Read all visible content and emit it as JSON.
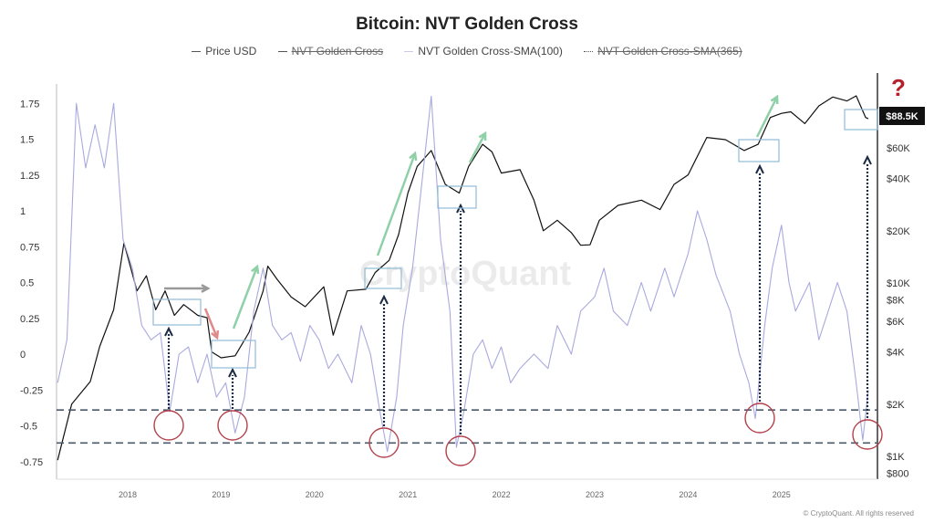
{
  "chart_data": {
    "type": "line",
    "title": "Bitcoin: NVT Golden Cross",
    "legend": [
      {
        "label": "Price USD",
        "hidden": false
      },
      {
        "label": "NVT Golden Cross",
        "hidden": true
      },
      {
        "label": "NVT Golden Cross-SMA(100)",
        "hidden": false
      },
      {
        "label": "NVT Golden Cross-SMA(365)",
        "hidden": true
      }
    ],
    "legend_position": "top",
    "x_ticks": [
      "2018",
      "2019",
      "2020",
      "2021",
      "2022",
      "2023",
      "2024",
      "2025"
    ],
    "x_range": [
      2017.24,
      2026.0
    ],
    "left_axis": {
      "ticks": [
        "1.75",
        "1.5",
        "1.25",
        "1",
        "0.75",
        "0.5",
        "0.25",
        "0",
        "-0.25",
        "-0.5",
        "-0.75"
      ],
      "range": [
        -0.8,
        1.85
      ]
    },
    "right_axis": {
      "scale": "log",
      "ticks": [
        "$60K",
        "$40K",
        "$20K",
        "$10K",
        "$8K",
        "$6K",
        "$4K",
        "$2K",
        "$1K",
        "$800"
      ],
      "range": [
        750,
        130000
      ]
    },
    "current_price_label": "$88.5K",
    "question_mark": "?",
    "threshold_lines": [
      -0.39,
      -0.62
    ],
    "series": [
      {
        "name": "Price USD",
        "axis": "right",
        "color": "#111111",
        "x": [
          2017.25,
          2017.4,
          2017.6,
          2017.7,
          2017.85,
          2017.96,
          2018.1,
          2018.2,
          2018.3,
          2018.4,
          2018.5,
          2018.6,
          2018.75,
          2018.85,
          2018.9,
          2019.0,
          2019.15,
          2019.3,
          2019.45,
          2019.5,
          2019.6,
          2019.75,
          2019.9,
          2020.1,
          2020.2,
          2020.35,
          2020.55,
          2020.65,
          2020.8,
          2020.9,
          2021.0,
          2021.1,
          2021.25,
          2021.4,
          2021.55,
          2021.65,
          2021.8,
          2021.9,
          2022.0,
          2022.2,
          2022.35,
          2022.45,
          2022.6,
          2022.75,
          2022.85,
          2022.95,
          2023.05,
          2023.25,
          2023.5,
          2023.7,
          2023.85,
          2024.0,
          2024.2,
          2024.4,
          2024.6,
          2024.75,
          2024.88,
          2025.0,
          2025.1,
          2025.25,
          2025.4,
          2025.55,
          2025.7,
          2025.8,
          2025.9,
          2025.93
        ],
        "y": [
          950,
          2000,
          2700,
          4300,
          7000,
          17000,
          9000,
          11000,
          7000,
          9000,
          6500,
          7500,
          6500,
          6300,
          4000,
          3700,
          3800,
          5200,
          9000,
          12500,
          10500,
          8300,
          7300,
          9500,
          5000,
          9000,
          9200,
          11500,
          13500,
          19000,
          33000,
          47000,
          58000,
          37000,
          33000,
          47000,
          63000,
          57000,
          43000,
          45000,
          30000,
          20000,
          23000,
          19500,
          16500,
          16600,
          23000,
          28000,
          30000,
          26500,
          37000,
          42000,
          69000,
          67000,
          58000,
          63000,
          90000,
          95000,
          97000,
          83000,
          105000,
          118000,
          112000,
          120000,
          90000,
          88500
        ]
      },
      {
        "name": "NVT Golden Cross-SMA(100)",
        "axis": "left",
        "color": "#a9a9e0",
        "x": [
          2017.25,
          2017.35,
          2017.45,
          2017.55,
          2017.65,
          2017.75,
          2017.85,
          2017.95,
          2018.05,
          2018.15,
          2018.25,
          2018.35,
          2018.45,
          2018.55,
          2018.65,
          2018.75,
          2018.85,
          2018.95,
          2019.05,
          2019.15,
          2019.25,
          2019.35,
          2019.45,
          2019.55,
          2019.65,
          2019.75,
          2019.85,
          2019.95,
          2020.05,
          2020.15,
          2020.25,
          2020.4,
          2020.5,
          2020.6,
          2020.7,
          2020.78,
          2020.88,
          2020.95,
          2021.05,
          2021.15,
          2021.25,
          2021.35,
          2021.45,
          2021.52,
          2021.6,
          2021.7,
          2021.8,
          2021.9,
          2022.0,
          2022.1,
          2022.2,
          2022.35,
          2022.5,
          2022.6,
          2022.75,
          2022.85,
          2023.0,
          2023.1,
          2023.2,
          2023.35,
          2023.5,
          2023.6,
          2023.75,
          2023.85,
          2024.0,
          2024.1,
          2024.2,
          2024.3,
          2024.45,
          2024.55,
          2024.65,
          2024.72,
          2024.82,
          2024.9,
          2025.0,
          2025.08,
          2025.15,
          2025.3,
          2025.4,
          2025.5,
          2025.6,
          2025.7,
          2025.8,
          2025.87,
          2025.93
        ],
        "y": [
          -0.2,
          0.1,
          1.75,
          1.3,
          1.6,
          1.3,
          1.75,
          0.8,
          0.6,
          0.2,
          0.1,
          0.15,
          -0.4,
          0.0,
          0.05,
          -0.2,
          0.0,
          -0.3,
          -0.2,
          -0.55,
          -0.3,
          0.3,
          0.6,
          0.2,
          0.1,
          0.15,
          -0.05,
          0.2,
          0.1,
          -0.1,
          0.0,
          -0.2,
          0.2,
          0.0,
          -0.4,
          -0.68,
          -0.3,
          0.2,
          0.6,
          1.2,
          1.8,
          0.8,
          0.3,
          -0.65,
          -0.4,
          0.0,
          0.1,
          -0.1,
          0.05,
          -0.2,
          -0.1,
          0.0,
          -0.1,
          0.2,
          0.0,
          0.3,
          0.4,
          0.6,
          0.3,
          0.2,
          0.5,
          0.3,
          0.6,
          0.4,
          0.7,
          1.0,
          0.8,
          0.55,
          0.3,
          0.0,
          -0.2,
          -0.45,
          0.2,
          0.6,
          0.9,
          0.5,
          0.3,
          0.5,
          0.1,
          0.3,
          0.5,
          0.3,
          -0.2,
          -0.6,
          -0.25
        ]
      }
    ],
    "watermark": "CryptoQuant",
    "copyright": "© CryptoQuant. All rights reserved"
  }
}
